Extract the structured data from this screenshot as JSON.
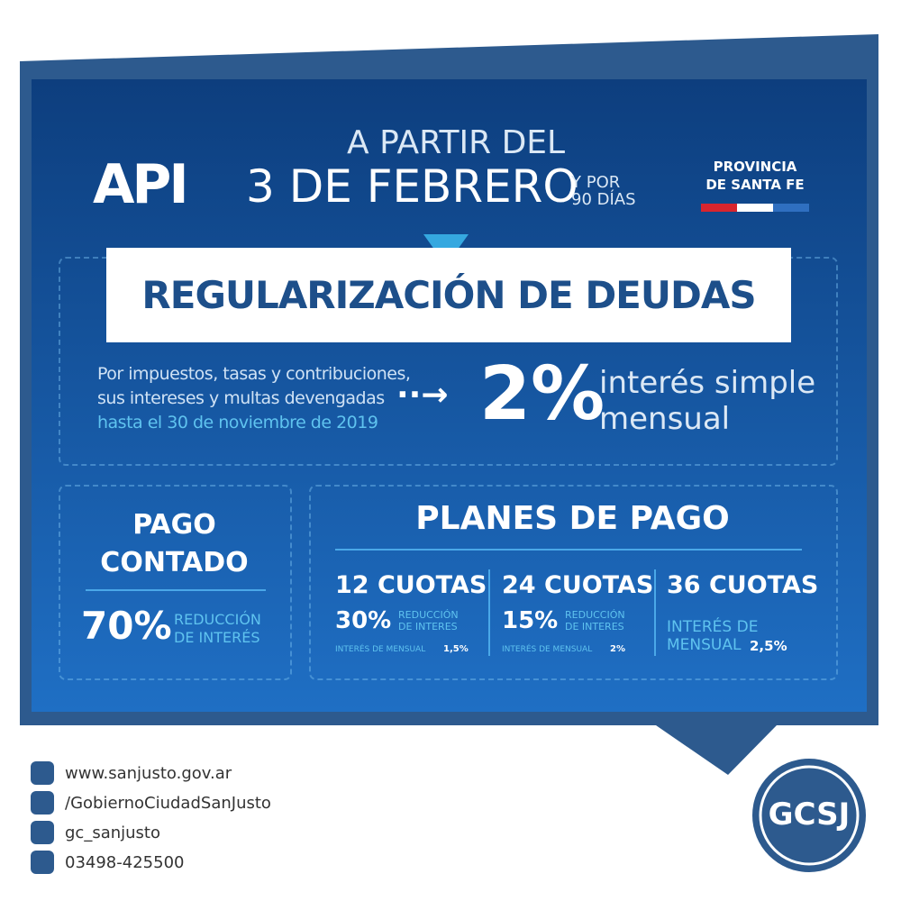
{
  "header": {
    "logo": "API",
    "line1": "A PARTIR DEL",
    "date": "3 DE FEBRERO",
    "duration": [
      "Y POR",
      "90 DÍAS"
    ],
    "province": [
      "PROVINCIA",
      "DE SANTA FE"
    ]
  },
  "banner": {
    "title": "REGULARIZACIÓN DE DEUDAS",
    "description": [
      "Por impuestos, tasas y contribuciones,",
      "sus intereses y multas devengadas",
      "hasta el 30 de noviembre de 2019"
    ],
    "arrow": "··→",
    "rate": "2%",
    "rate_label": [
      "interés simple",
      "mensual"
    ]
  },
  "cash": {
    "title": [
      "PAGO",
      "CONTADO"
    ],
    "percent": "70%",
    "label": [
      "REDUCCIÓN",
      "DE INTERÉS"
    ]
  },
  "plans": {
    "title": "PLANES DE PAGO",
    "items": [
      {
        "installments": "12 CUOTAS",
        "percent": "30%",
        "reduction": [
          "REDUCCIÓN",
          "DE INTERES"
        ],
        "rate_label": "INTERÉS DE MENSUAL",
        "rate": "1,5%"
      },
      {
        "installments": "24 CUOTAS",
        "percent": "15%",
        "reduction": [
          "REDUCCIÓN",
          "DE INTERES"
        ],
        "rate_label": "INTERÉS DE MENSUAL",
        "rate": "2%"
      },
      {
        "installments": "36 CUOTAS",
        "rate_label": "INTERÉS DE MENSUAL",
        "rate": "2,5%"
      }
    ]
  },
  "footer": {
    "contacts": [
      "www.sanjusto.gov.ar",
      "/GobiernoCiudadSanJusto",
      "gc_sanjusto",
      "03498-425500"
    ],
    "logo": "GCSJ"
  }
}
